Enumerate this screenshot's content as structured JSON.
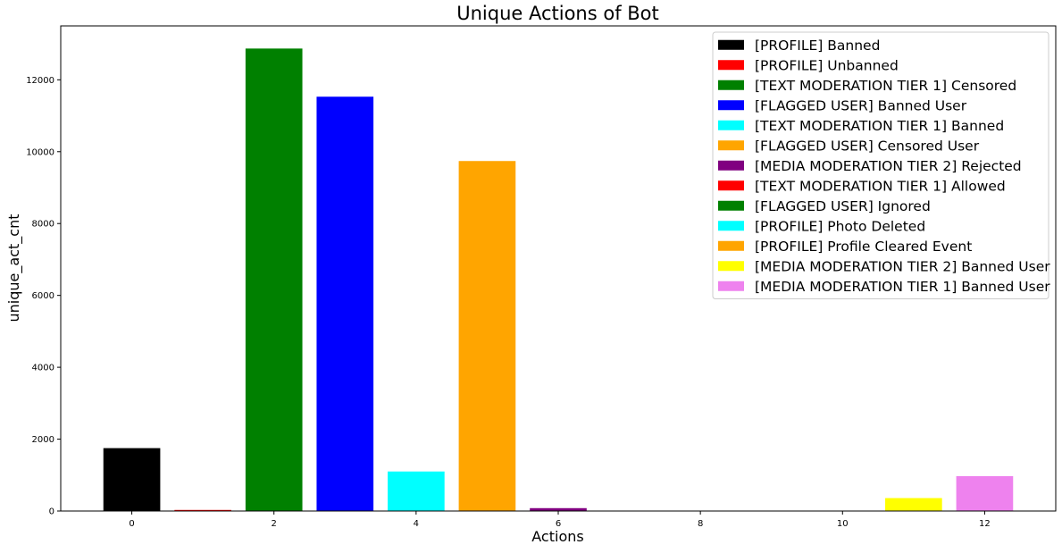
{
  "chart_data": {
    "type": "bar",
    "title": "Unique Actions of Bot",
    "xlabel": "Actions",
    "ylabel": "unique_act_cnt",
    "xlim": [
      -1,
      13
    ],
    "ylim": [
      0,
      13500
    ],
    "x_ticks": [
      "0",
      "2",
      "4",
      "6",
      "8",
      "10",
      "12"
    ],
    "y_ticks": [
      "0",
      "2000",
      "4000",
      "6000",
      "8000",
      "10000",
      "12000"
    ],
    "grid": false,
    "legend_position": "top-right",
    "series": [
      {
        "name": "[PROFILE] Banned",
        "x": 0,
        "value": 1750,
        "color": "#000000"
      },
      {
        "name": "[PROFILE] Unbanned",
        "x": 1,
        "value": 30,
        "color": "#ff0000"
      },
      {
        "name": "[TEXT MODERATION TIER 1] Censored",
        "x": 2,
        "value": 12870,
        "color": "#008000"
      },
      {
        "name": "[FLAGGED USER] Banned User",
        "x": 3,
        "value": 11530,
        "color": "#0000ff"
      },
      {
        "name": "[TEXT MODERATION TIER 1] Banned",
        "x": 4,
        "value": 1100,
        "color": "#00ffff"
      },
      {
        "name": "[FLAGGED USER] Censored User",
        "x": 5,
        "value": 9740,
        "color": "#ffa500"
      },
      {
        "name": "[MEDIA MODERATION TIER 2] Rejected",
        "x": 6,
        "value": 80,
        "color": "#800080"
      },
      {
        "name": "[TEXT MODERATION TIER 1] Allowed",
        "x": 7,
        "value": 3,
        "color": "#ff0000"
      },
      {
        "name": "[FLAGGED USER] Ignored",
        "x": 8,
        "value": 3,
        "color": "#008000"
      },
      {
        "name": "[PROFILE] Photo Deleted",
        "x": 9,
        "value": 2,
        "color": "#00ffff"
      },
      {
        "name": "[PROFILE] Profile Cleared Event",
        "x": 10,
        "value": 2,
        "color": "#ffa500"
      },
      {
        "name": "[MEDIA MODERATION TIER 2] Banned User",
        "x": 11,
        "value": 360,
        "color": "#ffff00"
      },
      {
        "name": "[MEDIA MODERATION TIER 1] Banned User",
        "x": 12,
        "value": 970,
        "color": "#ee82ee"
      }
    ]
  }
}
